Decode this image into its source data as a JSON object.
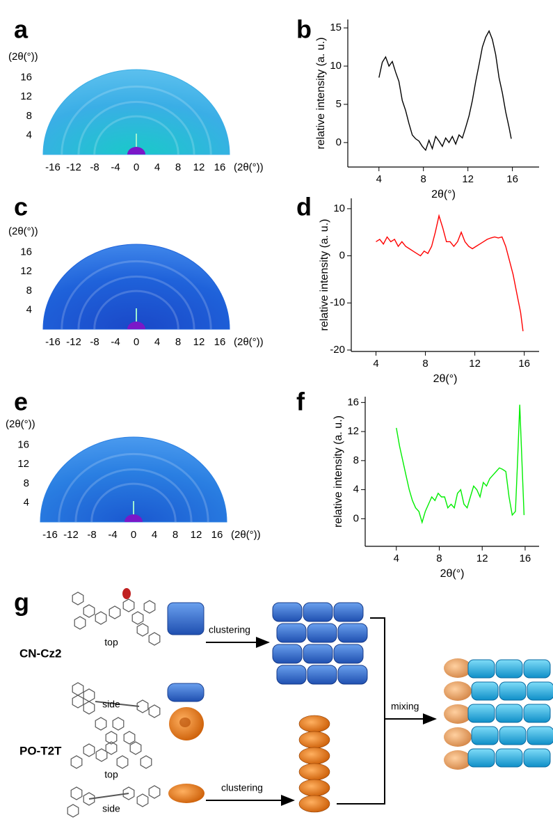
{
  "panel_labels": [
    "a",
    "b",
    "c",
    "d",
    "e",
    "f",
    "g"
  ],
  "patterns": [
    {
      "xticks": [
        -16,
        -12,
        -8,
        -4,
        0,
        4,
        8,
        12,
        16
      ],
      "yticks": [
        4,
        8,
        12,
        16
      ],
      "axis_label": "(2θ(°))",
      "color": "#3aaee6"
    },
    {
      "xticks": [
        -16,
        -12,
        -8,
        -4,
        0,
        4,
        8,
        12,
        16
      ],
      "yticks": [
        4,
        8,
        12,
        16
      ],
      "axis_label": "(2θ(°))",
      "color": "#1f62da"
    },
    {
      "xticks": [
        -16,
        -12,
        -8,
        -4,
        0,
        4,
        8,
        12,
        16
      ],
      "yticks": [
        4,
        8,
        12,
        16
      ],
      "axis_label": "(2θ(°))",
      "color": "#2a7fe2"
    }
  ],
  "chart_data": [
    {
      "type": "line",
      "x_label": "2θ(°)",
      "y_label": "relative intensity (a. u.)",
      "x": [
        4.0,
        4.3,
        4.6,
        4.9,
        5.2,
        5.5,
        5.8,
        6.1,
        6.4,
        6.7,
        7.0,
        7.3,
        7.6,
        7.9,
        8.2,
        8.5,
        8.8,
        9.1,
        9.4,
        9.7,
        10.0,
        10.3,
        10.6,
        10.9,
        11.2,
        11.5,
        11.8,
        12.1,
        12.4,
        12.7,
        13.0,
        13.3,
        13.6,
        13.9,
        14.2,
        14.5,
        14.8,
        15.1,
        15.4,
        15.7,
        15.9
      ],
      "series": [
        {
          "color": "#000000",
          "values": [
            8.5,
            10.5,
            11.2,
            10.0,
            10.6,
            9.2,
            8.0,
            5.5,
            4.2,
            2.5,
            1.0,
            0.5,
            0.2,
            -0.5,
            -1.0,
            0.3,
            -0.8,
            0.8,
            0.2,
            -0.5,
            0.6,
            0.0,
            0.8,
            -0.2,
            1.0,
            0.6,
            2.0,
            3.5,
            5.5,
            8.0,
            10.2,
            12.5,
            13.8,
            14.6,
            13.5,
            11.5,
            8.5,
            6.5,
            4.0,
            2.0,
            0.5
          ]
        }
      ],
      "xlim": [
        1.2,
        18.4
      ],
      "ylim": [
        -3.2,
        16.1
      ],
      "xticks": [
        4,
        8,
        12,
        16
      ],
      "yticks": [
        0,
        5,
        10,
        15
      ]
    },
    {
      "type": "line",
      "x_label": "2θ(°)",
      "y_label": "relative intensity (a. u.)",
      "x": [
        4.0,
        4.3,
        4.6,
        4.9,
        5.2,
        5.5,
        5.8,
        6.1,
        6.4,
        6.7,
        7.0,
        7.3,
        7.6,
        7.9,
        8.2,
        8.5,
        8.8,
        9.1,
        9.4,
        9.7,
        10.0,
        10.3,
        10.6,
        10.9,
        11.2,
        11.5,
        11.8,
        12.1,
        12.4,
        12.7,
        13.0,
        13.3,
        13.6,
        13.9,
        14.2,
        14.5,
        14.8,
        15.1,
        15.4,
        15.7,
        15.9
      ],
      "series": [
        {
          "color": "#ff0000",
          "values": [
            3,
            3.5,
            2.5,
            4,
            3,
            3.5,
            2,
            3,
            2,
            1.5,
            1,
            0.5,
            0,
            1,
            0.5,
            2,
            5,
            8.5,
            6,
            3,
            3,
            2,
            3,
            5,
            3,
            2,
            1.5,
            2,
            2.5,
            3,
            3.5,
            3.8,
            4,
            3.8,
            4,
            2,
            -1,
            -4,
            -8,
            -12,
            -16
          ]
        }
      ],
      "xlim": [
        2.0,
        17.2
      ],
      "ylim": [
        -20.3,
        12.2
      ],
      "xticks": [
        4,
        8,
        12,
        16
      ],
      "yticks": [
        -20,
        -10,
        0,
        10
      ]
    },
    {
      "type": "line",
      "x_label": "2θ(°)",
      "y_label": "relative intensity (a. u.)",
      "x": [
        4.0,
        4.3,
        4.6,
        4.9,
        5.2,
        5.5,
        5.8,
        6.1,
        6.4,
        6.7,
        7.0,
        7.3,
        7.6,
        7.9,
        8.2,
        8.5,
        8.8,
        9.1,
        9.4,
        9.7,
        10.0,
        10.3,
        10.6,
        10.9,
        11.2,
        11.5,
        11.8,
        12.1,
        12.4,
        12.7,
        13.0,
        13.3,
        13.6,
        13.9,
        14.2,
        14.5,
        14.8,
        15.1,
        15.3,
        15.5,
        15.7,
        15.9
      ],
      "series": [
        {
          "color": "#00ee00",
          "values": [
            12.5,
            10,
            8,
            6,
            4,
            2.5,
            1.5,
            1,
            -0.5,
            1,
            2,
            3,
            2.5,
            3.5,
            3,
            3,
            1.5,
            2,
            1.5,
            3.5,
            4,
            2,
            1.5,
            3,
            4.5,
            4,
            3,
            5,
            4.5,
            5.5,
            6,
            6.5,
            7,
            6.8,
            6.5,
            3,
            0.5,
            1,
            8,
            15.7,
            8,
            0.5
          ]
        }
      ],
      "xlim": [
        1.1,
        17.3
      ],
      "ylim": [
        -3.8,
        16.8
      ],
      "xticks": [
        4,
        8,
        12,
        16
      ],
      "yticks": [
        0,
        4,
        8,
        12,
        16
      ]
    }
  ],
  "schematic": {
    "molecules": [
      "CN-Cz2",
      "PO-T2T"
    ],
    "views": [
      "top",
      "side",
      "top",
      "side"
    ],
    "clustering": [
      "clustering",
      "clustering"
    ],
    "mixing": "mixing"
  }
}
